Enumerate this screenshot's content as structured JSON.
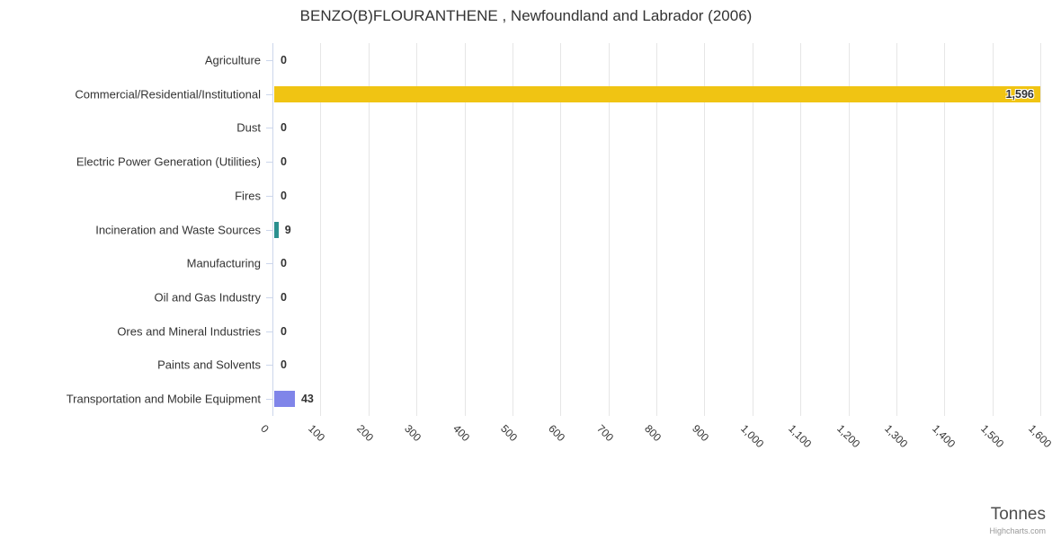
{
  "title": "BENZO(B)FLOURANTHENE , Newfoundland and Labrador (2006)",
  "xaxis_title": "Tonnes",
  "credit": "Highcharts.com",
  "chart_data": {
    "type": "bar",
    "orientation": "horizontal",
    "title": "BENZO(B)FLOURANTHENE , Newfoundland and Labrador (2006)",
    "xlabel": "Tonnes",
    "ylabel": "",
    "xlim": [
      0,
      1600
    ],
    "tick_step": 100,
    "grid": true,
    "legend": "none",
    "xticks": [
      "0",
      "100",
      "200",
      "300",
      "400",
      "500",
      "600",
      "700",
      "800",
      "900",
      "1,000",
      "1,100",
      "1,200",
      "1,300",
      "1,400",
      "1,500",
      "1,600"
    ],
    "categories": [
      "Agriculture",
      "Commercial/Residential/Institutional",
      "Dust",
      "Electric Power Generation (Utilities)",
      "Fires",
      "Incineration and Waste Sources",
      "Manufacturing",
      "Oil and Gas Industry",
      "Ores and Mineral Industries",
      "Paints and Solvents",
      "Transportation and Mobile Equipment"
    ],
    "values": [
      0,
      1596,
      0,
      0,
      0,
      9,
      0,
      0,
      0,
      0,
      43
    ],
    "value_labels": [
      "0",
      "1,596",
      "0",
      "0",
      "0",
      "9",
      "0",
      "0",
      "0",
      "0",
      "43"
    ],
    "bar_colors": [
      null,
      "#f0c413",
      null,
      null,
      null,
      "#2b908f",
      null,
      null,
      null,
      null,
      "#8085e9"
    ]
  },
  "colors": {
    "gridline": "#e6e6e6",
    "axis_line": "#ccd6eb",
    "text": "#333333"
  }
}
